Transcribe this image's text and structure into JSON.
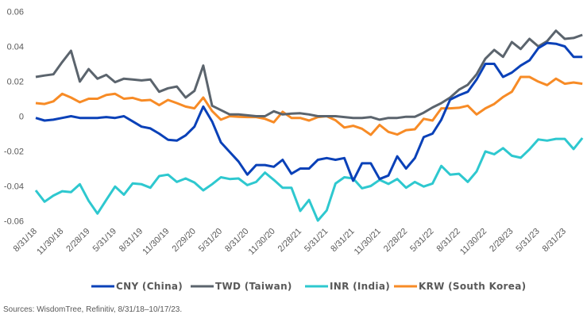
{
  "chart_data": {
    "type": "line",
    "title": "",
    "xlabel": "",
    "ylabel": "",
    "ylim": [
      -0.06,
      0.06
    ],
    "yticks": [
      "0.06",
      "0.04",
      "0.02",
      "0",
      "-0.02",
      "-0.04",
      "-0.06"
    ],
    "ytick_values": [
      0.06,
      0.04,
      0.02,
      0,
      -0.02,
      -0.04,
      -0.06
    ],
    "xtick_labels": [
      "8/31/18",
      "11/30/18",
      "2/28/19",
      "5/31/19",
      "8/31/19",
      "11/30/19",
      "2/29/20",
      "5/31/20",
      "8/31/20",
      "11/30/20",
      "2/28/21",
      "5/31/21",
      "8/31/21",
      "11/30/21",
      "2/28/22",
      "5/31/22",
      "8/31/22",
      "11/30/22",
      "2/28/23",
      "5/31/23",
      "8/31/23"
    ],
    "grid": false,
    "legend_position": "bottom",
    "series": [
      {
        "name": "CNY (China)",
        "color": "#0a41b8",
        "values": [
          -0.001,
          -0.0025,
          -0.002,
          -0.001,
          0,
          -0.001,
          -0.001,
          -0.001,
          -0.0005,
          -0.001,
          0,
          -0.003,
          -0.006,
          -0.007,
          -0.01,
          -0.0135,
          -0.014,
          -0.011,
          -0.006,
          0.0055,
          -0.003,
          -0.015,
          -0.0205,
          -0.026,
          -0.0335,
          -0.028,
          -0.028,
          -0.029,
          -0.025,
          -0.033,
          -0.03,
          -0.03,
          -0.025,
          -0.024,
          -0.025,
          -0.024,
          -0.037,
          -0.027,
          -0.027,
          -0.036,
          -0.034,
          -0.023,
          -0.03,
          -0.024,
          -0.012,
          -0.01,
          -0.002,
          0.0095,
          0.012,
          0.014,
          0.021,
          0.03,
          0.03,
          0.0225,
          0.025,
          0.029,
          0.032,
          0.039,
          0.042,
          0.0415,
          0.04,
          0.034,
          0.034
        ]
      },
      {
        "name": "TWD (Taiwan)",
        "color": "#5b646d",
        "values": [
          0.0225,
          0.0233,
          0.024,
          0.031,
          0.0375,
          0.0198,
          0.027,
          0.0215,
          0.0237,
          0.0195,
          0.0215,
          0.021,
          0.0205,
          0.021,
          0.014,
          0.016,
          0.017,
          0.0107,
          0.0145,
          0.029,
          0.006,
          0.0035,
          0.001,
          0.001,
          0.0005,
          0,
          0,
          0.0028,
          0.001,
          0.0015,
          0.0017,
          0.001,
          0,
          0,
          0,
          -0.0005,
          -0.001,
          -0.001,
          -0.0005,
          -0.002,
          -0.001,
          -0.001,
          -0.0003,
          -0.0003,
          0.002,
          0.005,
          0.0075,
          0.0107,
          0.0152,
          0.018,
          0.024,
          0.033,
          0.038,
          0.034,
          0.0425,
          0.0385,
          0.0443,
          0.04,
          0.043,
          0.049,
          0.0443,
          0.0448,
          0.0466
        ]
      },
      {
        "name": "INR (India)",
        "color": "#2ec8cf",
        "values": [
          -0.0425,
          -0.049,
          -0.0455,
          -0.043,
          -0.0435,
          -0.039,
          -0.0485,
          -0.0558,
          -0.048,
          -0.0403,
          -0.045,
          -0.0385,
          -0.039,
          -0.041,
          -0.0343,
          -0.0335,
          -0.0377,
          -0.0357,
          -0.038,
          -0.0425,
          -0.039,
          -0.035,
          -0.036,
          -0.0357,
          -0.0395,
          -0.0377,
          -0.0323,
          -0.0365,
          -0.041,
          -0.041,
          -0.0543,
          -0.048,
          -0.0598,
          -0.054,
          -0.0386,
          -0.035,
          -0.0357,
          -0.0413,
          -0.04,
          -0.0365,
          -0.0388,
          -0.036,
          -0.041,
          -0.0377,
          -0.0403,
          -0.0386,
          -0.0285,
          -0.0335,
          -0.033,
          -0.0377,
          -0.0317,
          -0.0202,
          -0.0218,
          -0.0183,
          -0.0227,
          -0.0238,
          -0.019,
          -0.0133,
          -0.014,
          -0.013,
          -0.013,
          -0.0188,
          -0.0125
        ]
      },
      {
        "name": "KRW (South Korea)",
        "color": "#f78b26",
        "values": [
          0.0075,
          0.007,
          0.0085,
          0.0128,
          0.0107,
          0.008,
          0.01,
          0.01,
          0.0122,
          0.0128,
          0.01,
          0.0105,
          0.009,
          0.0093,
          0.0063,
          0.0093,
          0.0075,
          0.0055,
          0.0045,
          0.0107,
          0.003,
          -0.002,
          0,
          -0.0003,
          -0.0005,
          -0.0005,
          -0.0015,
          -0.0035,
          0.0025,
          -0.001,
          -0.001,
          -0.0025,
          -0.0005,
          0,
          -0.0023,
          -0.0065,
          -0.0055,
          -0.0072,
          -0.0107,
          -0.005,
          -0.009,
          -0.0105,
          -0.008,
          -0.0075,
          -0.0015,
          -0.0025,
          0.0045,
          0.0045,
          0.0048,
          0.006,
          0.001,
          0.0045,
          0.007,
          0.011,
          0.014,
          0.0225,
          0.0225,
          0.0198,
          0.0178,
          0.0215,
          0.0186,
          0.0193,
          0.0186
        ]
      }
    ]
  },
  "footer": {
    "source": "Sources: WisdomTree, Refinitiv, 8/31/18–10/17/23."
  }
}
